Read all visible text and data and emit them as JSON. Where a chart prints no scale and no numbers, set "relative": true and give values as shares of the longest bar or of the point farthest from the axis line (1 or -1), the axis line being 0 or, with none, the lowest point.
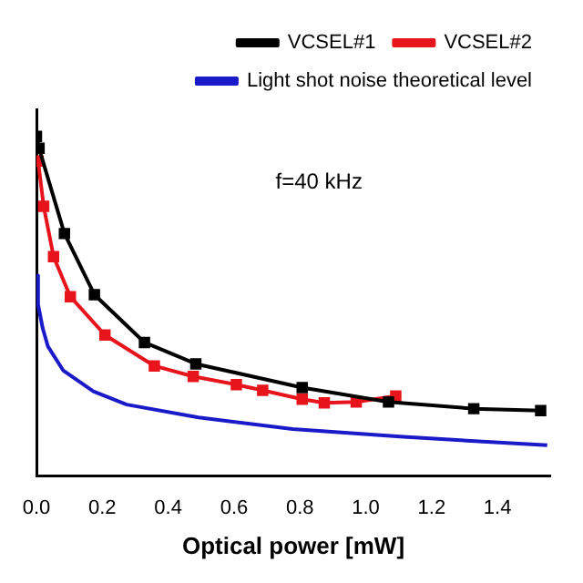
{
  "chart_data": {
    "type": "line",
    "relative": true,
    "xlabel": "Optical power [mW]",
    "xlim": [
      0,
      1.56
    ],
    "xticks": [
      {
        "value": 0,
        "label": "0.0"
      },
      0.2,
      0.4,
      0.6,
      0.8,
      {
        "value": 1,
        "label": "1.0"
      },
      1.2,
      1.4
    ],
    "grid": false,
    "legend": "top right",
    "annotations": [
      "f=40 kHz"
    ],
    "series": [
      {
        "name": "VCSEL#1",
        "color": "#000000",
        "marker": "square",
        "x": [
          0,
          0.008,
          0.085,
          0.176,
          0.328,
          0.484,
          0.807,
          1.069,
          1.328,
          1.531
        ],
        "values": [
          1,
          0.965,
          0.714,
          0.534,
          0.393,
          0.33,
          0.26,
          0.218,
          0.198,
          0.192
        ]
      },
      {
        "name": "VCSEL#2",
        "color": "#e8141c",
        "marker": "square",
        "x": [
          0.005,
          0.022,
          0.052,
          0.103,
          0.208,
          0.358,
          0.476,
          0.607,
          0.687,
          0.807,
          0.874,
          0.971,
          1.091
        ],
        "values": [
          0.928,
          0.794,
          0.646,
          0.528,
          0.415,
          0.324,
          0.293,
          0.269,
          0.252,
          0.226,
          0.215,
          0.218,
          0.235
        ]
      },
      {
        "name": "Light shot noise theoretical level",
        "color": "#1a1ac8",
        "marker": "none",
        "x": [
          0,
          0.005,
          0.019,
          0.035,
          0.081,
          0.173,
          0.274,
          0.492,
          0.778,
          1.114,
          1.551
        ],
        "values": [
          0.59,
          0.505,
          0.435,
          0.381,
          0.311,
          0.249,
          0.21,
          0.172,
          0.138,
          0.115,
          0.09
        ]
      }
    ]
  }
}
